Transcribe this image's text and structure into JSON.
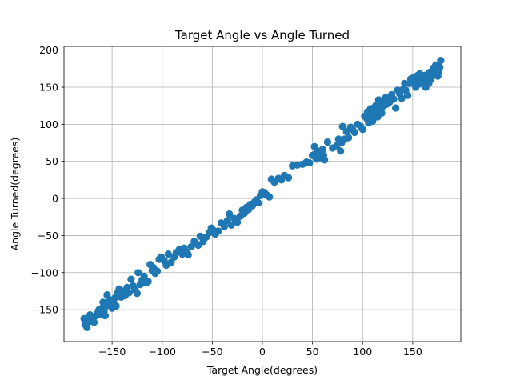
{
  "chart_data": {
    "type": "scatter",
    "title": "Target Angle vs Angle Turned",
    "xlabel": "Target Angle(degrees)",
    "ylabel": "Angle Turned(degrees)",
    "xlim": [
      -198,
      198
    ],
    "ylim": [
      -193,
      205
    ],
    "xticks": [
      -150,
      -100,
      -50,
      0,
      50,
      100,
      150
    ],
    "yticks": [
      -150,
      -100,
      -50,
      0,
      50,
      100,
      150,
      200
    ],
    "xtick_labels": [
      "−150",
      "−100",
      "−50",
      "0",
      "50",
      "100",
      "150"
    ],
    "ytick_labels": [
      "−150",
      "−100",
      "−50",
      "0",
      "50",
      "100",
      "150",
      "200"
    ],
    "grid": true,
    "marker_color": "#1f77b4",
    "points": [
      [
        -178,
        -162
      ],
      [
        -177,
        -170
      ],
      [
        -175,
        -174
      ],
      [
        -173,
        -166
      ],
      [
        -172,
        -157
      ],
      [
        -170,
        -160
      ],
      [
        -168,
        -167
      ],
      [
        -166,
        -158
      ],
      [
        -164,
        -153
      ],
      [
        -163,
        -150
      ],
      [
        -161,
        -156
      ],
      [
        -160,
        -148
      ],
      [
        -159,
        -140
      ],
      [
        -158,
        -152
      ],
      [
        -157,
        -158
      ],
      [
        -156,
        -145
      ],
      [
        -155,
        -130
      ],
      [
        -153,
        -136
      ],
      [
        -152,
        -143
      ],
      [
        -150,
        -148
      ],
      [
        -149,
        -140
      ],
      [
        -147,
        -134
      ],
      [
        -146,
        -145
      ],
      [
        -145,
        -128
      ],
      [
        -143,
        -122
      ],
      [
        -141,
        -133
      ],
      [
        -139,
        -125
      ],
      [
        -137,
        -131
      ],
      [
        -135,
        -120
      ],
      [
        -133,
        -127
      ],
      [
        -131,
        -109
      ],
      [
        -129,
        -118
      ],
      [
        -127,
        -123
      ],
      [
        -125,
        -128
      ],
      [
        -124,
        -100
      ],
      [
        -122,
        -116
      ],
      [
        -120,
        -110
      ],
      [
        -118,
        -105
      ],
      [
        -116,
        -114
      ],
      [
        -114,
        -112
      ],
      [
        -112,
        -89
      ],
      [
        -110,
        -97
      ],
      [
        -109,
        -93
      ],
      [
        -107,
        -101
      ],
      [
        -105,
        -98
      ],
      [
        -103,
        -82
      ],
      [
        -101,
        -79
      ],
      [
        -98,
        -84
      ],
      [
        -96,
        -90
      ],
      [
        -94,
        -75
      ],
      [
        -91,
        -86
      ],
      [
        -88,
        -79
      ],
      [
        -86,
        -73
      ],
      [
        -83,
        -69
      ],
      [
        -80,
        -75
      ],
      [
        -78,
        -67
      ],
      [
        -76,
        -72
      ],
      [
        -74,
        -76
      ],
      [
        -71,
        -65
      ],
      [
        -68,
        -58
      ],
      [
        -66,
        -61
      ],
      [
        -64,
        -63
      ],
      [
        -62,
        -51
      ],
      [
        -59,
        -58
      ],
      [
        -56,
        -52
      ],
      [
        -53,
        -46
      ],
      [
        -51,
        -40
      ],
      [
        -49,
        -43
      ],
      [
        -47,
        -48
      ],
      [
        -44,
        -44
      ],
      [
        -41,
        -33
      ],
      [
        -38,
        -38
      ],
      [
        -35,
        -30
      ],
      [
        -33,
        -21
      ],
      [
        -31,
        -36
      ],
      [
        -28,
        -27
      ],
      [
        -25,
        -32
      ],
      [
        -22,
        -24
      ],
      [
        -20,
        -16
      ],
      [
        -18,
        -20
      ],
      [
        -16,
        -12
      ],
      [
        -14,
        -15
      ],
      [
        -12,
        -8
      ],
      [
        -10,
        -10
      ],
      [
        -8,
        -5
      ],
      [
        -6,
        -2
      ],
      [
        -4,
        -6
      ],
      [
        -2,
        4
      ],
      [
        0,
        9
      ],
      [
        2,
        8
      ],
      [
        4,
        5
      ],
      [
        7,
        2
      ],
      [
        9,
        26
      ],
      [
        12,
        22
      ],
      [
        16,
        27
      ],
      [
        19,
        25
      ],
      [
        22,
        31
      ],
      [
        26,
        28
      ],
      [
        30,
        44
      ],
      [
        35,
        45
      ],
      [
        40,
        46
      ],
      [
        44,
        49
      ],
      [
        47,
        48
      ],
      [
        50,
        58
      ],
      [
        52,
        70
      ],
      [
        53,
        60
      ],
      [
        54,
        53
      ],
      [
        55,
        64
      ],
      [
        56,
        57
      ],
      [
        57,
        62
      ],
      [
        58,
        55
      ],
      [
        59,
        61
      ],
      [
        60,
        66
      ],
      [
        61,
        58
      ],
      [
        62,
        52
      ],
      [
        65,
        76
      ],
      [
        70,
        68
      ],
      [
        74,
        71
      ],
      [
        76,
        80
      ],
      [
        78,
        64
      ],
      [
        79,
        75
      ],
      [
        80,
        97
      ],
      [
        82,
        80
      ],
      [
        84,
        90
      ],
      [
        86,
        82
      ],
      [
        88,
        96
      ],
      [
        90,
        93
      ],
      [
        92,
        89
      ],
      [
        95,
        100
      ],
      [
        98,
        97
      ],
      [
        100,
        93
      ],
      [
        102,
        111
      ],
      [
        104,
        108
      ],
      [
        105,
        117
      ],
      [
        106,
        102
      ],
      [
        107,
        115
      ],
      [
        108,
        121
      ],
      [
        109,
        112
      ],
      [
        110,
        104
      ],
      [
        111,
        119
      ],
      [
        112,
        114
      ],
      [
        113,
        125
      ],
      [
        114,
        118
      ],
      [
        115,
        110
      ],
      [
        116,
        133
      ],
      [
        117,
        120
      ],
      [
        118,
        128
      ],
      [
        119,
        115
      ],
      [
        120,
        124
      ],
      [
        121,
        131
      ],
      [
        122,
        126
      ],
      [
        123,
        136
      ],
      [
        124,
        127
      ],
      [
        125,
        133
      ],
      [
        127,
        130
      ],
      [
        129,
        140
      ],
      [
        131,
        134
      ],
      [
        133,
        122
      ],
      [
        135,
        146
      ],
      [
        137,
        141
      ],
      [
        139,
        135
      ],
      [
        141,
        148
      ],
      [
        142,
        155
      ],
      [
        143,
        146
      ],
      [
        145,
        139
      ],
      [
        147,
        155
      ],
      [
        148,
        161
      ],
      [
        150,
        157
      ],
      [
        151,
        163
      ],
      [
        153,
        150
      ],
      [
        154,
        160
      ],
      [
        155,
        166
      ],
      [
        156,
        154
      ],
      [
        157,
        168
      ],
      [
        158,
        161
      ],
      [
        159,
        156
      ],
      [
        160,
        163
      ],
      [
        161,
        158
      ],
      [
        162,
        166
      ],
      [
        163,
        150
      ],
      [
        164,
        162
      ],
      [
        165,
        167
      ],
      [
        166,
        155
      ],
      [
        167,
        170
      ],
      [
        168,
        160
      ],
      [
        169,
        164
      ],
      [
        170,
        167
      ],
      [
        171,
        176
      ],
      [
        172,
        169
      ],
      [
        173,
        180
      ],
      [
        174,
        172
      ],
      [
        175,
        165
      ],
      [
        176,
        171
      ],
      [
        177,
        177
      ],
      [
        178,
        186
      ]
    ]
  }
}
